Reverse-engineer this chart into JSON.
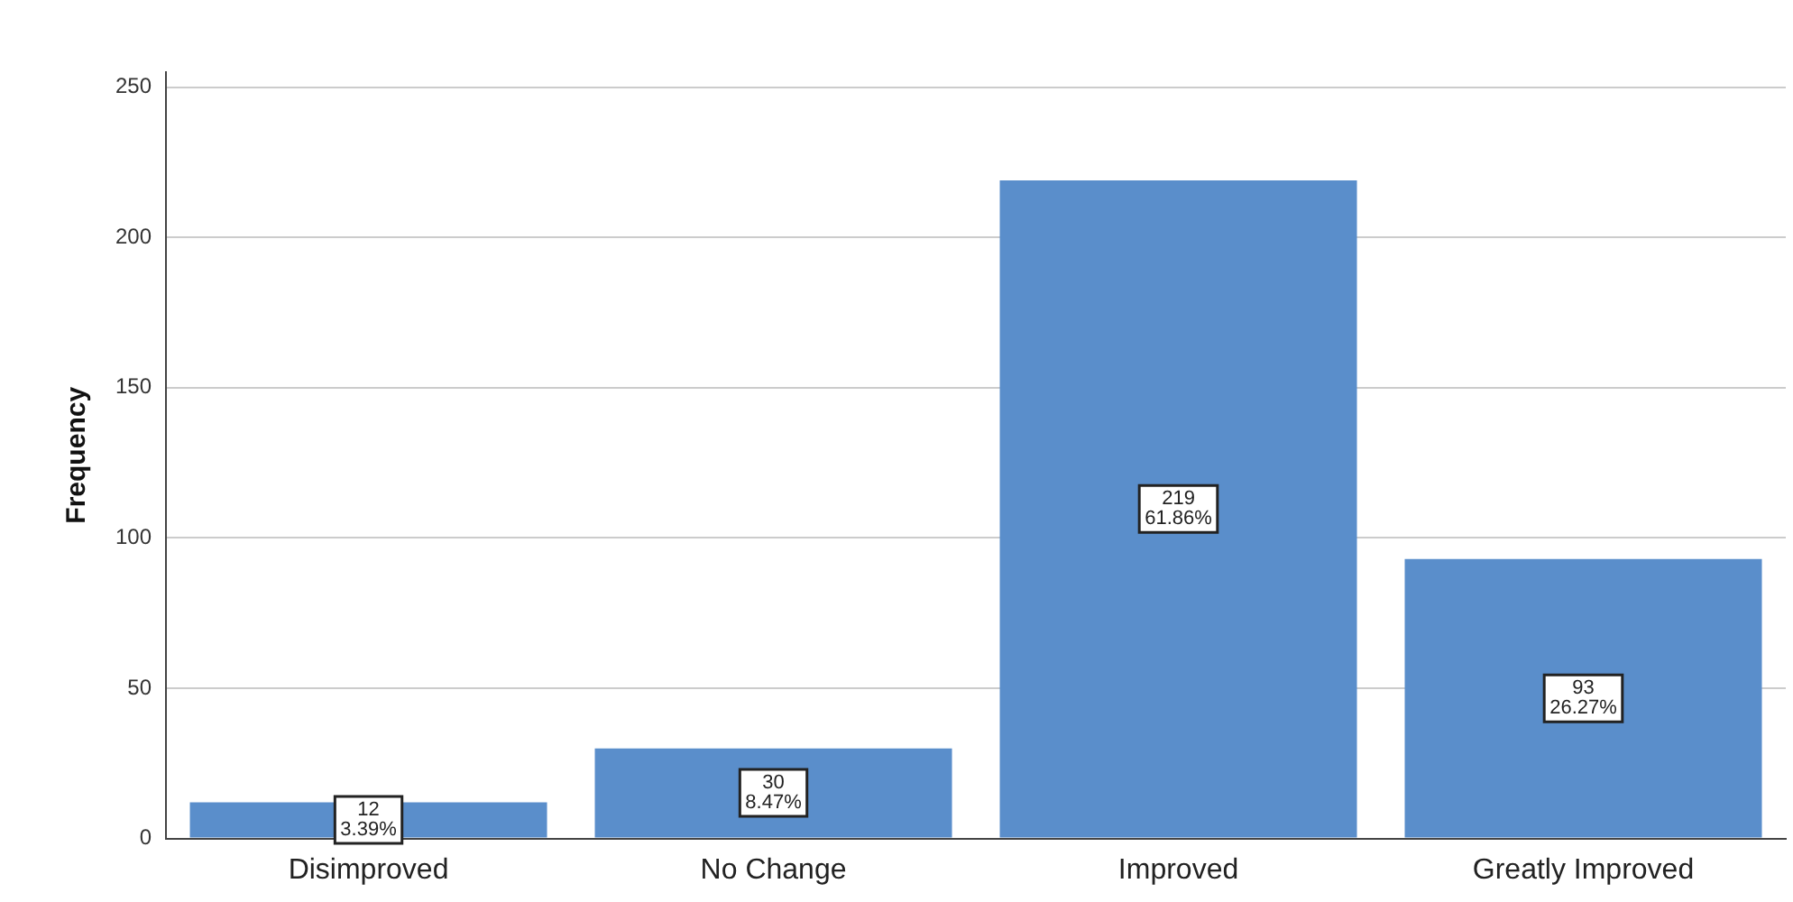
{
  "chart_data": {
    "type": "bar",
    "ylabel": "Frequency",
    "categories": [
      "Disimproved",
      "No Change",
      "Improved",
      "Greatly Improved"
    ],
    "values": [
      12,
      30,
      219,
      93
    ],
    "color": "#5a8ecb",
    "value_labels": [
      "12\n3.39%",
      "30\n8.47%",
      "219\n61.86%",
      "93\n26.27%"
    ],
    "ylim": [
      0,
      255
    ],
    "yticks": [
      0,
      50,
      100,
      150,
      200,
      250
    ],
    "grid": "y",
    "legend": false
  }
}
